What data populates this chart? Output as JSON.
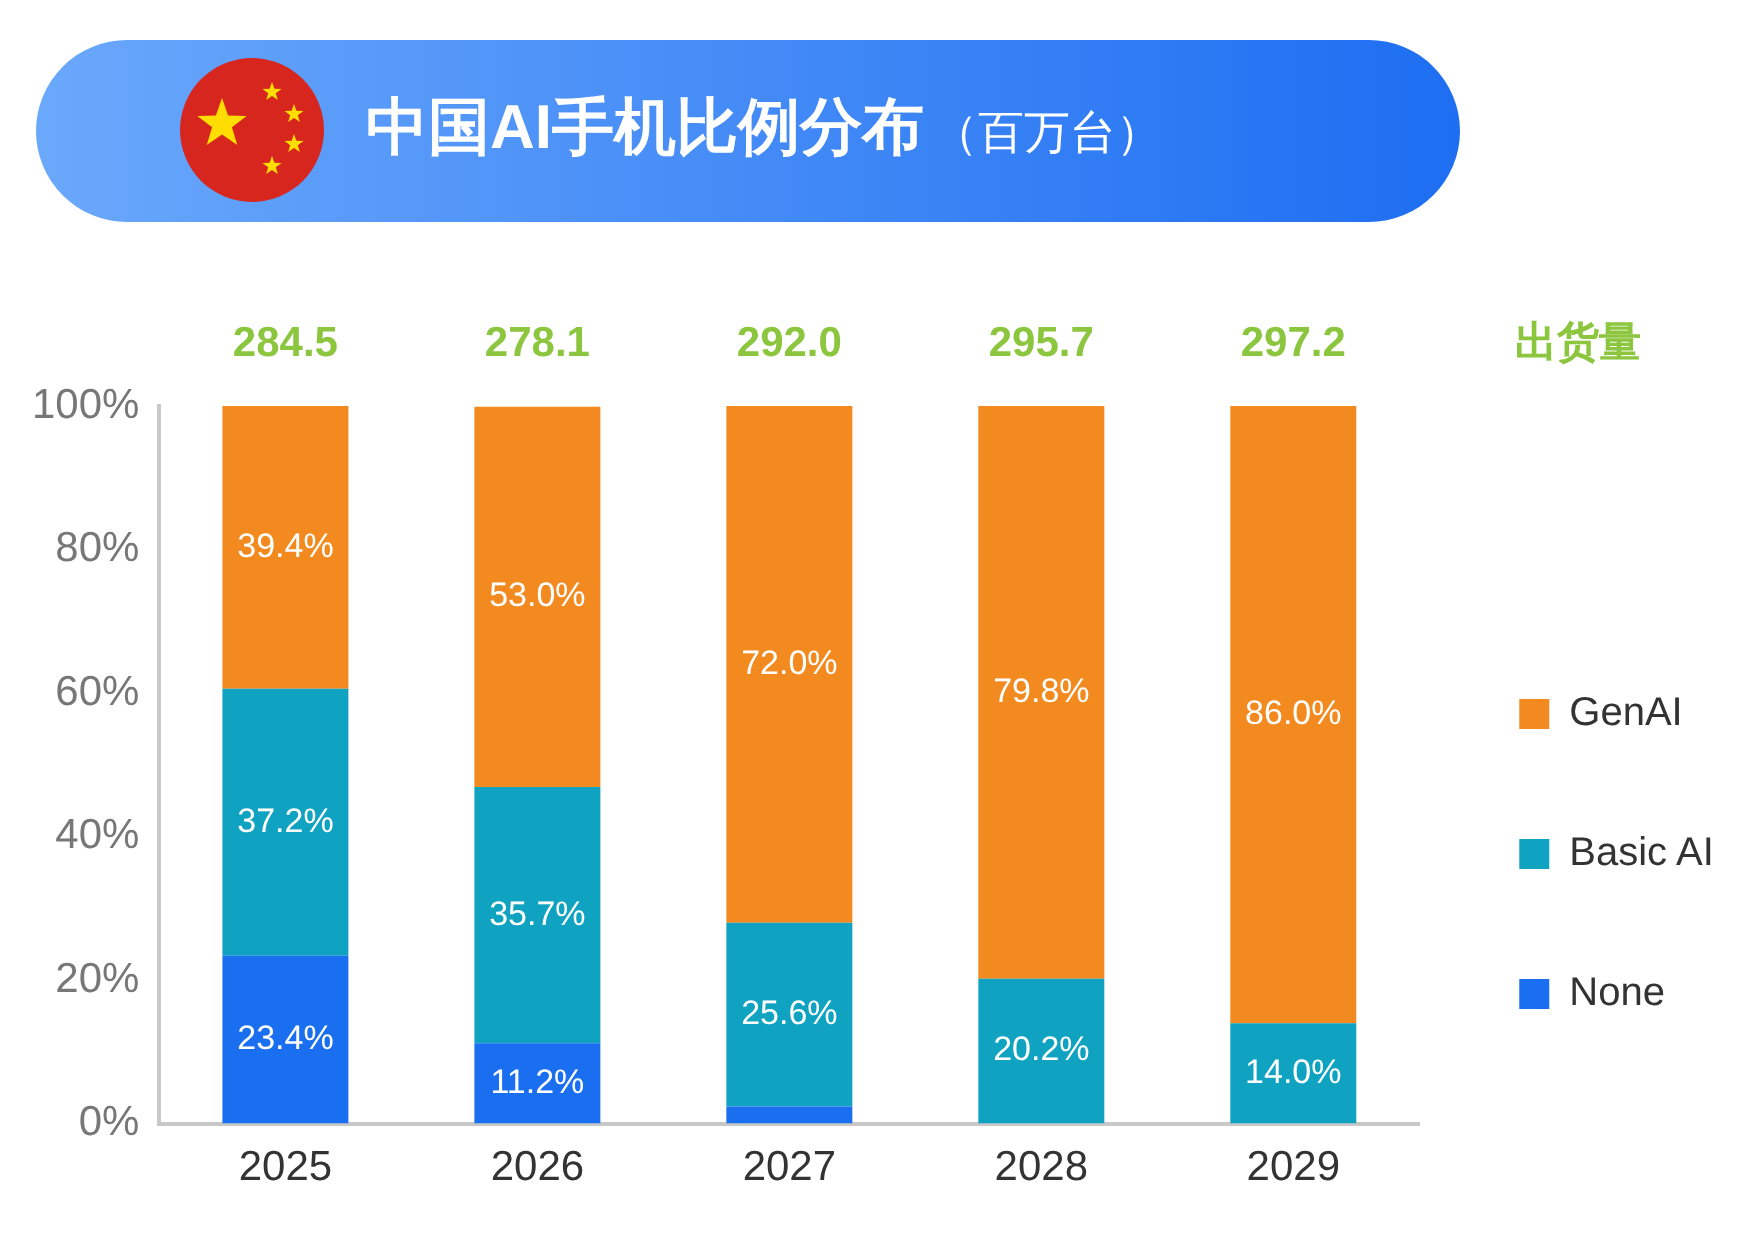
{
  "chart_data": {
    "type": "bar",
    "title": "中国AI手机比例分布",
    "subtitle": "（百万台）",
    "categories": [
      "2025",
      "2026",
      "2027",
      "2028",
      "2029"
    ],
    "series": [
      {
        "name": "None",
        "color": "#1a6ff0",
        "values": [
          23.4,
          11.2,
          2.4,
          0,
          0
        ],
        "value_labels": [
          "23.4%",
          "11.2%",
          null,
          null,
          null
        ]
      },
      {
        "name": "Basic AI",
        "color": "#0fa3c1",
        "values": [
          37.2,
          35.7,
          25.6,
          20.2,
          14.0
        ],
        "value_labels": [
          "37.2%",
          "35.7%",
          "25.6%",
          "20.2%",
          "14.0%"
        ]
      },
      {
        "name": "GenAI",
        "color": "#f28a1f",
        "values": [
          39.4,
          53.0,
          72.0,
          79.8,
          86.0
        ],
        "value_labels": [
          "39.4%",
          "53.0%",
          "72.0%",
          "79.8%",
          "86.0%"
        ]
      }
    ],
    "stacked": true,
    "ylim": [
      0,
      100
    ],
    "yticks": [
      {
        "value": 0,
        "label": "0%"
      },
      {
        "value": 20,
        "label": "20%"
      },
      {
        "value": 40,
        "label": "40%"
      },
      {
        "value": 60,
        "label": "60%"
      },
      {
        "value": 80,
        "label": "80%"
      },
      {
        "value": 100,
        "label": "100%"
      }
    ],
    "annotations": [
      "284.5",
      "278.1",
      "292.0",
      "295.7",
      "297.2",
      "出货量"
    ],
    "legend": "right"
  }
}
